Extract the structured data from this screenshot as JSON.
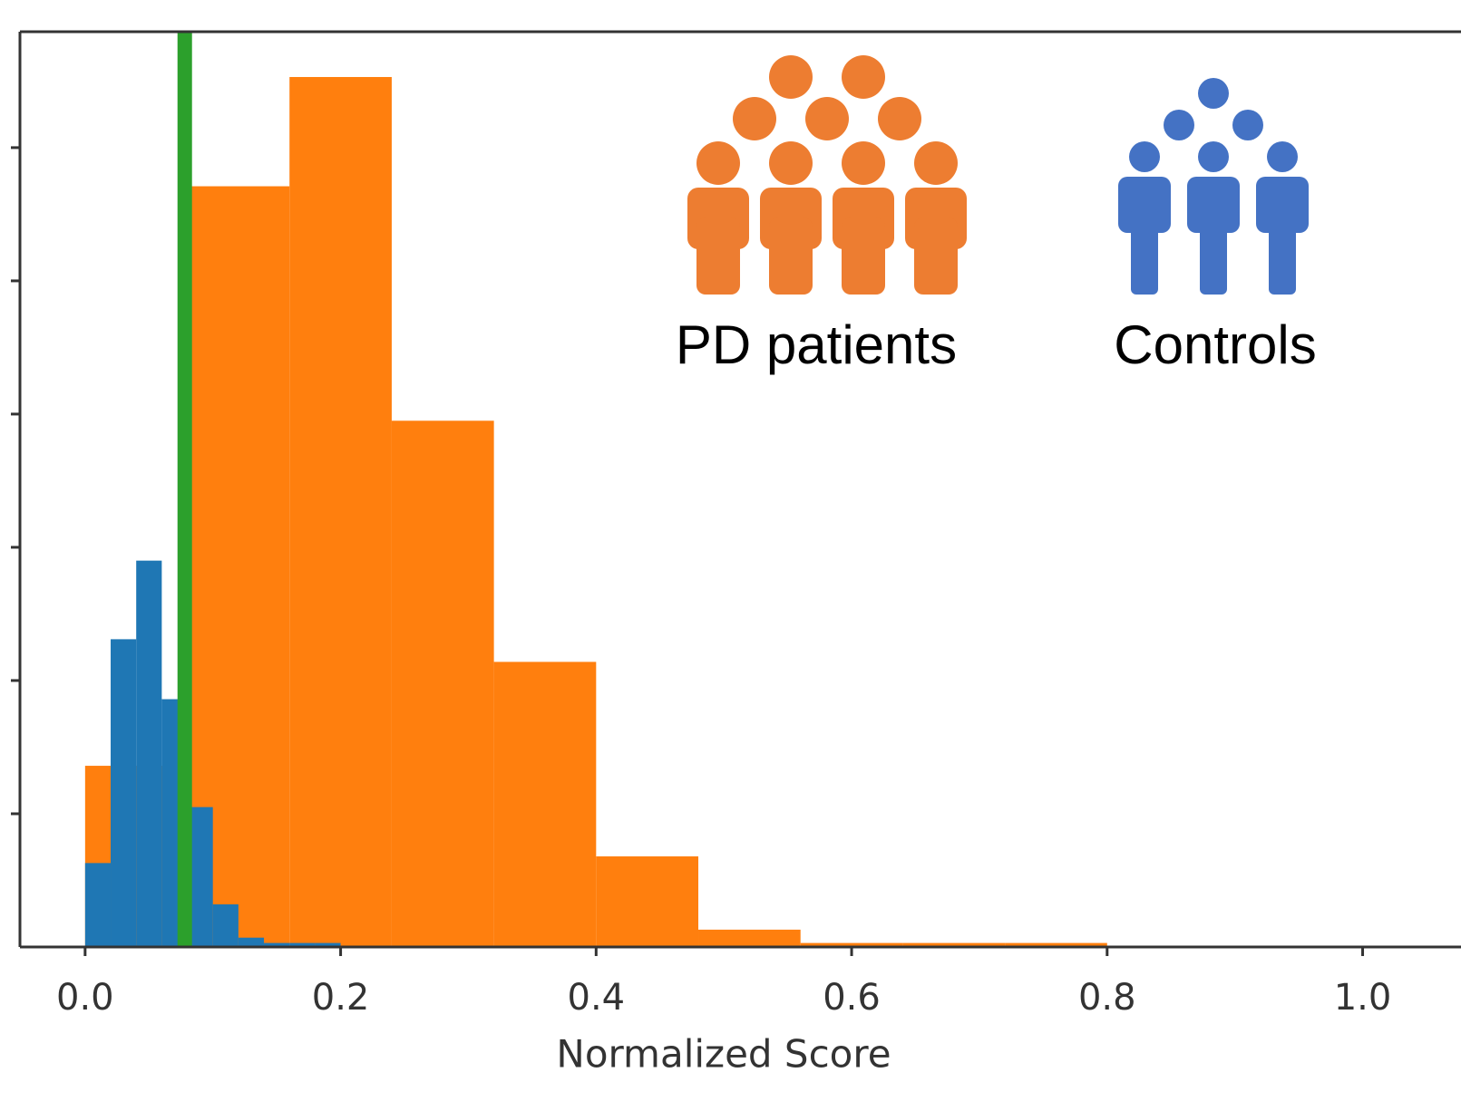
{
  "chart_data": {
    "type": "histogram",
    "x_label": "Normalized Score",
    "xlim": [
      -0.051,
      1.077
    ],
    "ylim": [
      0,
      6.87
    ],
    "xticks": [
      {
        "value": 0,
        "label": "0.0"
      },
      {
        "value": 0.2,
        "label": "0.2"
      },
      {
        "value": 0.4,
        "label": "0.4"
      },
      {
        "value": 0.6,
        "label": "0.6"
      },
      {
        "value": 0.8,
        "label": "0.8"
      },
      {
        "value": 1,
        "label": "1.0"
      }
    ],
    "yticks": [
      1,
      2,
      3,
      4,
      5,
      6
    ],
    "series": [
      {
        "color": "#ff7f0e",
        "bins": [
          0,
          0.08,
          0.16,
          0.24,
          0.32,
          0.4,
          0.48,
          0.56,
          0.64,
          0.72,
          0.8
        ],
        "values": [
          1.36,
          5.71,
          6.53,
          3.95,
          2.14,
          0.68,
          0.13,
          0.03,
          0.03,
          0.03
        ]
      },
      {
        "color": "#1f77b4",
        "bins": [
          0,
          0.02,
          0.04,
          0.06,
          0.08,
          0.1,
          0.12,
          0.14,
          0.16,
          0.18,
          0.2
        ],
        "values": [
          0.63,
          2.31,
          2.9,
          1.86,
          1.05,
          0.32,
          0.07,
          0.03,
          0.03,
          0.03
        ]
      }
    ],
    "vlines": [
      {
        "x": 0.078,
        "color": "#2ca02c"
      }
    ],
    "annotations": [
      "PD patients",
      "Controls"
    ]
  }
}
